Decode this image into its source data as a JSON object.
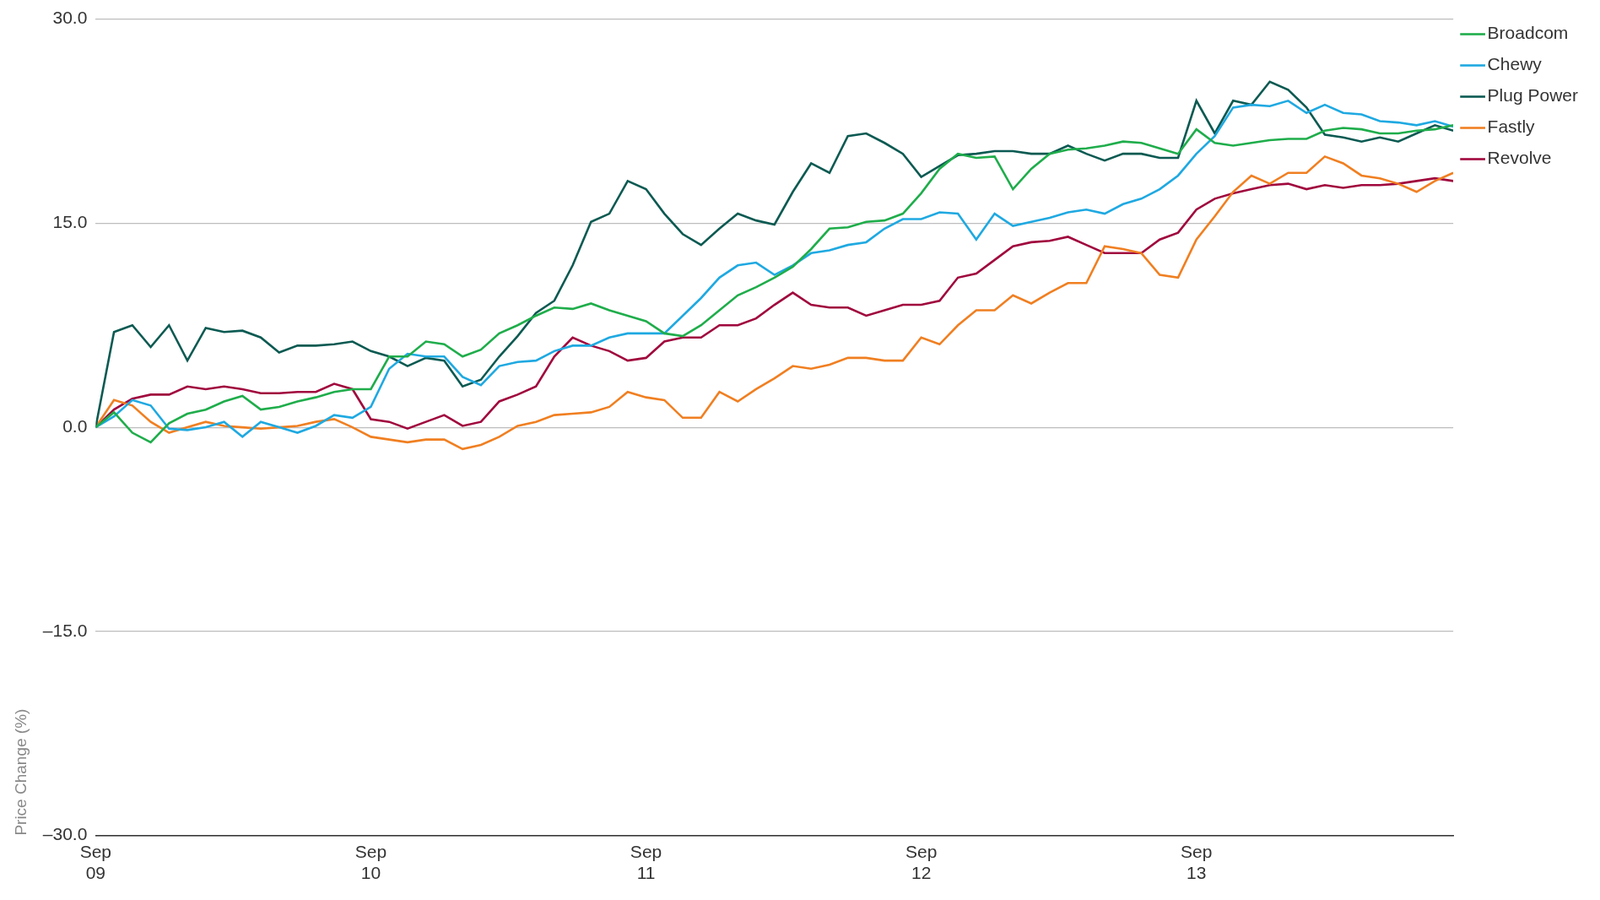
{
  "chart_data": {
    "type": "line",
    "y_label": "Price Change (%)",
    "categories": [
      "Sep 09",
      null,
      null,
      null,
      null,
      null,
      null,
      null,
      null,
      null,
      null,
      null,
      null,
      null,
      null,
      "Sep 10",
      null,
      null,
      null,
      null,
      null,
      null,
      null,
      null,
      null,
      null,
      null,
      null,
      null,
      null,
      "Sep 11",
      null,
      null,
      null,
      null,
      null,
      null,
      null,
      null,
      null,
      null,
      null,
      null,
      null,
      null,
      "Sep 12",
      null,
      null,
      null,
      null,
      null,
      null,
      null,
      null,
      null,
      null,
      null,
      null,
      null,
      null,
      "Sep 13",
      null,
      null,
      null,
      null,
      null,
      null,
      null,
      null,
      null,
      null,
      null,
      null,
      null,
      null
    ],
    "ylim": [
      -30,
      30
    ],
    "yticks": [
      {
        "value": 30,
        "label": "30.0"
      },
      {
        "value": 15,
        "label": "15.0"
      },
      {
        "value": 0,
        "label": "0.0"
      },
      {
        "value": -15,
        "label": "–15.0"
      },
      {
        "value": -30,
        "label": "–30.0"
      }
    ],
    "grid": true,
    "legend": "top-right",
    "series": [
      {
        "name": "Broadcom",
        "color": "#1fad4b",
        "values": [
          0,
          1.1,
          -0.4,
          -1.1,
          0.3,
          1.0,
          1.3,
          1.9,
          2.3,
          1.3,
          1.5,
          1.9,
          2.2,
          2.6,
          2.8,
          2.8,
          5.2,
          5.2,
          6.3,
          6.1,
          5.2,
          5.7,
          6.9,
          7.5,
          8.2,
          8.8,
          8.7,
          9.1,
          8.6,
          8.2,
          7.8,
          6.9,
          6.7,
          7.5,
          8.6,
          9.7,
          10.3,
          11.0,
          11.8,
          13.1,
          14.6,
          14.7,
          15.1,
          15.2,
          15.7,
          17.2,
          19.0,
          20.1,
          19.8,
          19.9,
          17.5,
          19.0,
          20.1,
          20.4,
          20.5,
          20.7,
          21.0,
          20.9,
          20.5,
          20.1,
          21.9,
          20.9,
          20.7,
          20.9,
          21.1,
          21.2,
          21.2,
          21.8,
          22.0,
          21.9,
          21.6,
          21.6,
          21.8,
          21.9,
          22.2
        ]
      },
      {
        "name": "Chewy",
        "color": "#1fa9e1",
        "values": [
          0,
          0.8,
          2.0,
          1.6,
          -0.1,
          -0.2,
          0.0,
          0.4,
          -0.7,
          0.4,
          0.0,
          -0.4,
          0.1,
          0.9,
          0.7,
          1.5,
          4.3,
          5.4,
          5.2,
          5.2,
          3.7,
          3.1,
          4.5,
          4.8,
          4.9,
          5.6,
          6.0,
          6.0,
          6.6,
          6.9,
          6.9,
          6.9,
          8.2,
          9.5,
          11.0,
          11.9,
          12.1,
          11.2,
          11.9,
          12.8,
          13.0,
          13.4,
          13.6,
          14.6,
          15.3,
          15.3,
          15.8,
          15.7,
          13.8,
          15.7,
          14.8,
          15.1,
          15.4,
          15.8,
          16.0,
          15.7,
          16.4,
          16.8,
          17.5,
          18.5,
          20.1,
          21.4,
          23.5,
          23.7,
          23.6,
          24.0,
          23.1,
          23.7,
          23.1,
          23.0,
          22.5,
          22.4,
          22.2,
          22.5,
          22.1
        ]
      },
      {
        "name": "Plug Power",
        "color": "#0b5a52",
        "values": [
          0,
          7,
          7.5,
          5.9,
          7.5,
          4.9,
          7.3,
          7.0,
          7.1,
          6.6,
          5.5,
          6.0,
          6.0,
          6.1,
          6.3,
          5.6,
          5.2,
          4.5,
          5.1,
          4.9,
          3.0,
          3.5,
          5.2,
          6.7,
          8.4,
          9.3,
          11.9,
          15.1,
          15.7,
          18.1,
          17.5,
          15.7,
          14.2,
          13.4,
          14.6,
          15.7,
          15.2,
          14.9,
          17.3,
          19.4,
          18.7,
          21.4,
          21.6,
          20.9,
          20.1,
          18.4,
          19.2,
          20.0,
          20.1,
          20.3,
          20.3,
          20.1,
          20.1,
          20.7,
          20.1,
          19.6,
          20.1,
          20.1,
          19.8,
          19.8,
          24.0,
          21.6,
          24.0,
          23.7,
          25.4,
          24.8,
          23.5,
          21.5,
          21.3,
          21.0,
          21.3,
          21.0,
          21.6,
          22.2,
          21.8
        ]
      },
      {
        "name": "Fastly",
        "color": "#f07f21",
        "values": [
          0,
          2.0,
          1.6,
          0.4,
          -0.4,
          0.0,
          0.4,
          0.1,
          0.0,
          -0.1,
          0.0,
          0.1,
          0.4,
          0.6,
          0.0,
          -0.7,
          -0.9,
          -1.1,
          -0.9,
          -0.9,
          -1.6,
          -1.3,
          -0.7,
          0.1,
          0.4,
          0.9,
          1.0,
          1.1,
          1.5,
          2.6,
          2.2,
          2.0,
          0.7,
          0.7,
          2.6,
          1.9,
          2.8,
          3.6,
          4.5,
          4.3,
          4.6,
          5.1,
          5.1,
          4.9,
          4.9,
          6.6,
          6.1,
          7.5,
          8.6,
          8.6,
          9.7,
          9.1,
          9.9,
          10.6,
          10.6,
          13.3,
          13.1,
          12.8,
          11.2,
          11.0,
          13.8,
          15.5,
          17.3,
          18.5,
          17.9,
          18.7,
          18.7,
          19.9,
          19.4,
          18.5,
          18.3,
          17.9,
          17.3,
          18.1,
          18.7
        ]
      },
      {
        "name": "Revolve",
        "color": "#a0073d",
        "values": [
          0,
          1.3,
          2.1,
          2.4,
          2.4,
          3.0,
          2.8,
          3.0,
          2.8,
          2.5,
          2.5,
          2.6,
          2.6,
          3.2,
          2.8,
          0.6,
          0.4,
          -0.1,
          0.4,
          0.9,
          0.1,
          0.4,
          1.9,
          2.4,
          3.0,
          5.2,
          6.6,
          6.0,
          5.6,
          4.9,
          5.1,
          6.3,
          6.6,
          6.6,
          7.5,
          7.5,
          8.0,
          9.0,
          9.9,
          9.0,
          8.8,
          8.8,
          8.2,
          8.6,
          9.0,
          9.0,
          9.3,
          11.0,
          11.3,
          12.3,
          13.3,
          13.6,
          13.7,
          14.0,
          13.4,
          12.8,
          12.8,
          12.8,
          13.8,
          14.3,
          16.0,
          16.8,
          17.2,
          17.5,
          17.8,
          17.9,
          17.5,
          17.8,
          17.6,
          17.8,
          17.8,
          17.9,
          18.1,
          18.3,
          18.1
        ]
      }
    ]
  }
}
